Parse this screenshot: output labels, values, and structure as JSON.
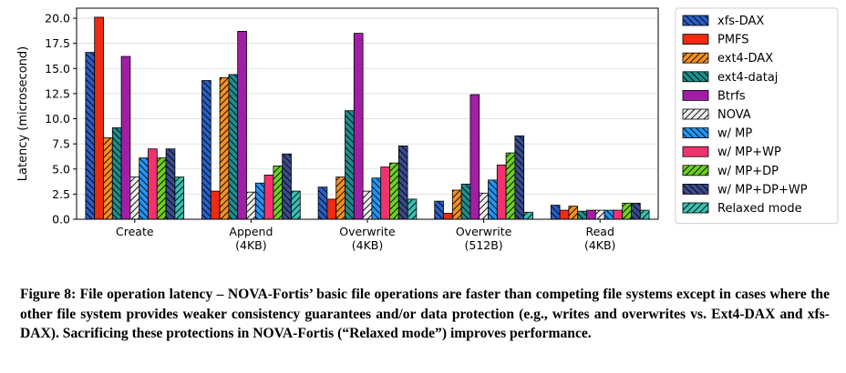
{
  "chart_data": {
    "type": "bar",
    "ylabel": "Latency (microsecond)",
    "ylim": [
      0,
      21
    ],
    "yticks": [
      "0.0",
      "2.5",
      "5.0",
      "7.5",
      "10.0",
      "12.5",
      "15.0",
      "17.5",
      "20.0"
    ],
    "categories": [
      {
        "line1": "Create",
        "line2": ""
      },
      {
        "line1": "Append",
        "line2": "(4KB)"
      },
      {
        "line1": "Overwrite",
        "line2": "(4KB)"
      },
      {
        "line1": "Overwrite",
        "line2": "(512B)"
      },
      {
        "line1": "Read",
        "line2": "(4KB)"
      }
    ],
    "grid": "horizontal",
    "legend_position": "right",
    "series": [
      {
        "name": "xfs-DAX",
        "color": "#2a5fc4",
        "hatch": "back",
        "values": [
          16.6,
          13.8,
          3.2,
          1.8,
          1.4
        ]
      },
      {
        "name": "PMFS",
        "color": "#ee2a10",
        "hatch": "none",
        "values": [
          20.1,
          2.8,
          2.0,
          0.6,
          0.9
        ]
      },
      {
        "name": "ext4-DAX",
        "color": "#f5901e",
        "hatch": "fwd",
        "values": [
          8.1,
          14.1,
          4.2,
          2.9,
          1.3
        ]
      },
      {
        "name": "ext4-dataj",
        "color": "#1c8e8e",
        "hatch": "back",
        "values": [
          9.1,
          14.4,
          10.8,
          3.5,
          0.8
        ]
      },
      {
        "name": "Btrfs",
        "color": "#a21ea6",
        "hatch": "none",
        "values": [
          16.2,
          18.7,
          18.5,
          12.4,
          0.9
        ]
      },
      {
        "name": "NOVA",
        "color": "#eeeeee",
        "hatch": "fwd",
        "values": [
          4.2,
          2.7,
          2.8,
          2.6,
          0.9
        ]
      },
      {
        "name": "w/ MP",
        "color": "#2196f3",
        "hatch": "back",
        "values": [
          6.1,
          3.6,
          4.1,
          3.9,
          0.9
        ]
      },
      {
        "name": "w/ MP+WP",
        "color": "#f2326e",
        "hatch": "none",
        "values": [
          7.0,
          4.4,
          5.2,
          5.4,
          0.9
        ]
      },
      {
        "name": "w/ MP+DP",
        "color": "#6ed020",
        "hatch": "fwd",
        "values": [
          6.1,
          5.3,
          5.6,
          6.6,
          1.6
        ]
      },
      {
        "name": "w/ MP+DP+WP",
        "color": "#3a4b8c",
        "hatch": "back",
        "values": [
          7.0,
          6.5,
          7.3,
          8.3,
          1.6
        ]
      },
      {
        "name": "Relaxed mode",
        "color": "#3bbfb0",
        "hatch": "fwd",
        "values": [
          4.2,
          2.8,
          2.0,
          0.7,
          0.9
        ]
      }
    ]
  },
  "caption": {
    "text": "Figure 8: File operation latency – NOVA-Fortis’ basic file operations are faster than competing file systems except in cases where the other file system provides weaker consistency guarantees and/or data protection (e.g., writes and overwrites vs. Ext4-DAX and xfs-DAX). Sacrificing these protections in NOVA-Fortis (“Relaxed mode”) improves performance."
  }
}
